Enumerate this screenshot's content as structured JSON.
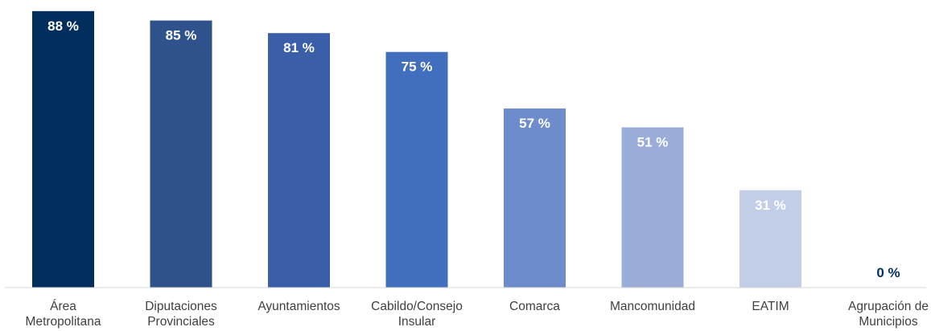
{
  "chart_data": {
    "type": "bar",
    "title": "",
    "xlabel": "",
    "ylabel": "",
    "ylim": [
      0,
      90
    ],
    "grid": false,
    "legend": "none",
    "value_suffix": " %",
    "categories": [
      [
        "Área",
        "Metropolitana"
      ],
      [
        "Diputaciones",
        "Provinciales"
      ],
      [
        "Ayuntamientos"
      ],
      [
        "Cabildo/Consejo",
        "Insular"
      ],
      [
        "Comarca"
      ],
      [
        "Mancomunidad"
      ],
      [
        "EATIM"
      ],
      [
        "Agrupación de",
        "Municipios"
      ]
    ],
    "values": [
      88,
      85,
      81,
      75,
      57,
      51,
      31,
      0
    ],
    "colors": [
      "#022e5e",
      "#2f518c",
      "#3a5ea8",
      "#416fbd",
      "#6e8bcc",
      "#9aadd8",
      "#c2cde7",
      "#e4e9f4"
    ],
    "label_colors": [
      "#ffffff",
      "#ffffff",
      "#ffffff",
      "#ffffff",
      "#ffffff",
      "#ffffff",
      "#ffffff",
      "#022e5e"
    ],
    "axis_color": "#d9d9d9"
  }
}
